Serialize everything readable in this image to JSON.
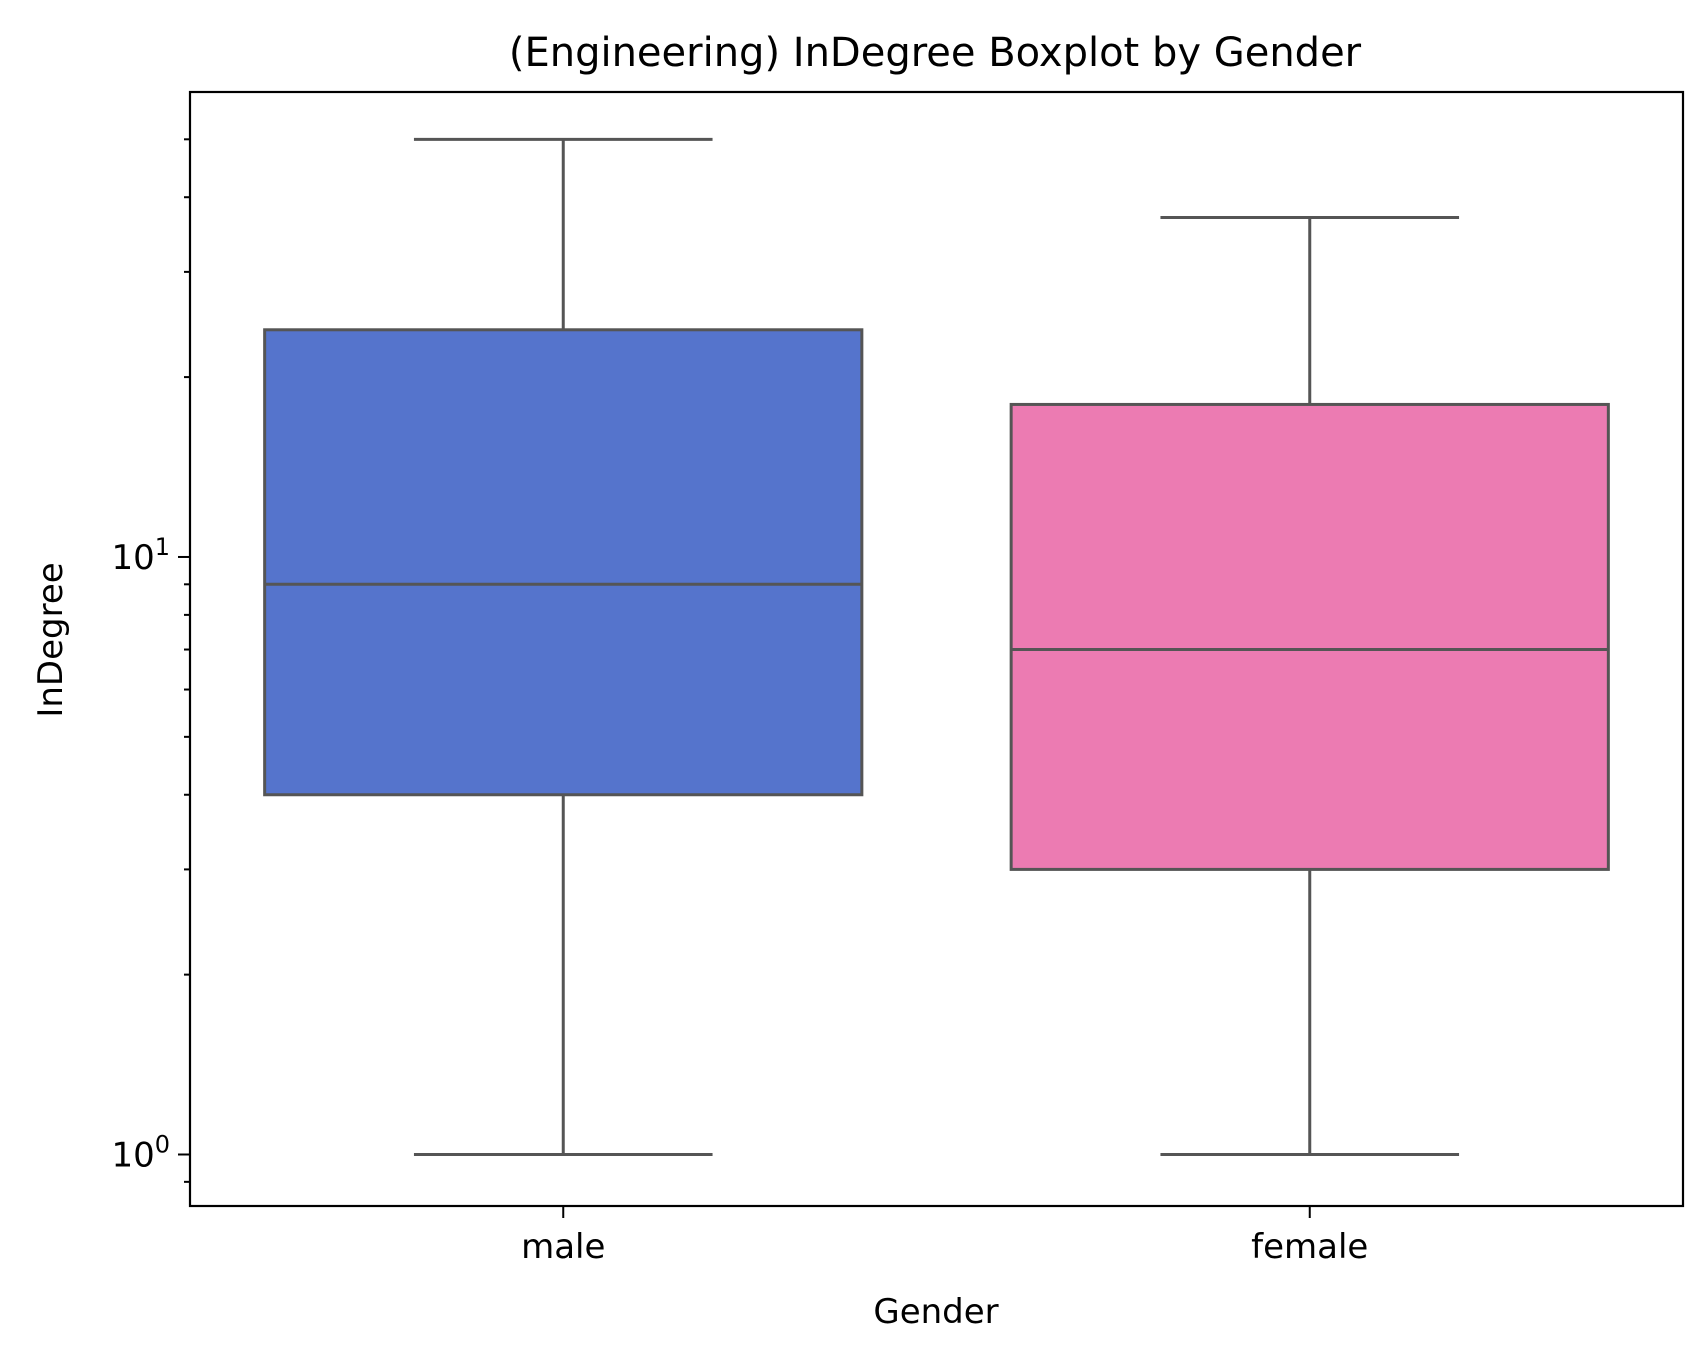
{
  "chart_data": {
    "type": "box",
    "title": "(Engineering) InDegree Boxplot by Gender",
    "xlabel": "Gender",
    "ylabel": "InDegree",
    "yscale": "log",
    "ylim": [
      0.82,
      60
    ],
    "yticks": [
      {
        "value": 1,
        "base": "10",
        "exp": "0"
      },
      {
        "value": 10,
        "base": "10",
        "exp": "1"
      }
    ],
    "categories": [
      "male",
      "female"
    ],
    "boxes": [
      {
        "category": "male",
        "whisker_low": 1,
        "q1": 4,
        "median": 9,
        "q3": 24,
        "whisker_high": 50,
        "color": "#5574CC"
      },
      {
        "category": "female",
        "whisker_low": 1,
        "q1": 3,
        "median": 7,
        "q3": 18,
        "whisker_high": 37,
        "color": "#EC7BB2"
      }
    ],
    "line_color": "#555555"
  }
}
